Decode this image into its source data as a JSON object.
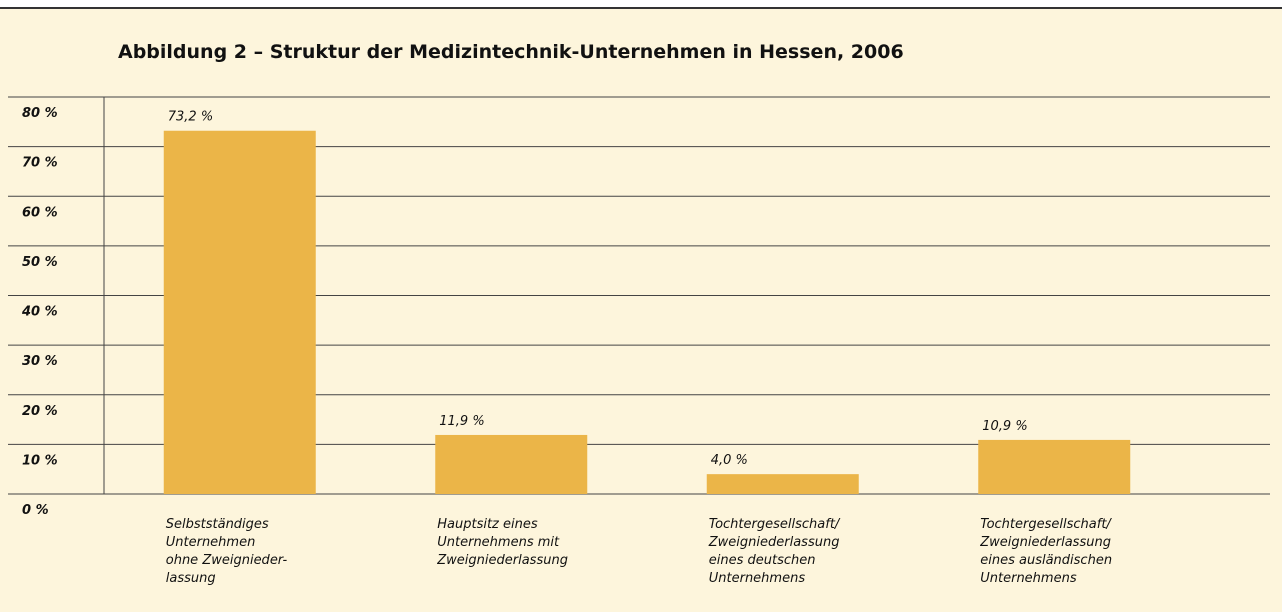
{
  "chart_data": {
    "type": "bar",
    "title": "Abbildung 2 – Struktur der Medizintechnik-Unternehmen in Hessen, 2006",
    "categories": [
      [
        "Selbstständiges",
        "Unternehmen",
        "ohne Zweignieder-",
        "lassung"
      ],
      [
        "Hauptsitz eines",
        "Unternehmens mit",
        "Zweigniederlassung"
      ],
      [
        "Tochtergesellschaft/",
        "Zweigniederlassung",
        "eines deutschen",
        "Unternehmens"
      ],
      [
        "Tochtergesellschaft/",
        "Zweigniederlassung",
        "eines ausländischen",
        "Unternehmens"
      ]
    ],
    "values": [
      73.2,
      11.9,
      4.0,
      10.9
    ],
    "value_labels": [
      "73,2 %",
      "11,9 %",
      "4,0 %",
      "10,9 %"
    ],
    "color": "#ebb548",
    "ylim": [
      0,
      80
    ],
    "yticks": [
      {
        "value": 0,
        "label": "0 %"
      },
      {
        "value": 10,
        "label": "10 %"
      },
      {
        "value": 20,
        "label": "20 %"
      },
      {
        "value": 30,
        "label": "30 %"
      },
      {
        "value": 40,
        "label": "40 %"
      },
      {
        "value": 50,
        "label": "50 %"
      },
      {
        "value": 60,
        "label": "60 %"
      },
      {
        "value": 70,
        "label": "70 %"
      },
      {
        "value": 80,
        "label": "80 %"
      }
    ],
    "grid": true
  }
}
